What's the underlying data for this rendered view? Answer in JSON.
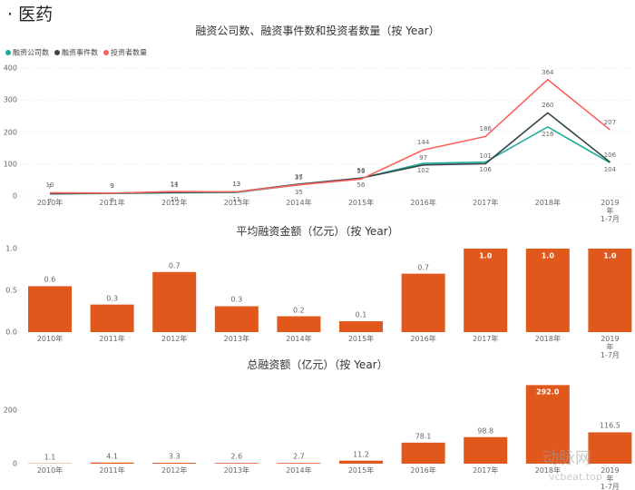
{
  "title": "· 医药",
  "watermark": {
    "name": "动脉网",
    "site": "vcbeat.top"
  },
  "chart_data": [
    {
      "type": "line",
      "title": "融资公司数、融资事件数和投资者数量（按 Year）",
      "categories": [
        "2010年",
        "2011年",
        "2012年",
        "2013年",
        "2014年",
        "2015年",
        "2016年",
        "2017年",
        "2018年",
        "2019年\n1-7月"
      ],
      "series": [
        {
          "name": "融资公司数",
          "color": "#1aab9b",
          "values": [
            7,
            8,
            10,
            11,
            35,
            56,
            102,
            106,
            216,
            104
          ]
        },
        {
          "name": "融资事件数",
          "color": "#374649",
          "values": [
            7,
            9,
            11,
            13,
            37,
            56,
            97,
            101,
            260,
            106
          ]
        },
        {
          "name": "投资者数量",
          "color": "#fd625e",
          "values": [
            10,
            9,
            14,
            13,
            35,
            53,
            144,
            186,
            364,
            207
          ]
        }
      ],
      "ylim": [
        0,
        400
      ],
      "yticks": [
        0,
        100,
        200,
        300,
        400
      ],
      "grid": true,
      "legend": "top-left"
    },
    {
      "type": "bar",
      "title": "平均融资金额（亿元）（按 Year）",
      "categories": [
        "2010年",
        "2011年",
        "2012年",
        "2013年",
        "2014年",
        "2015年",
        "2016年",
        "2017年",
        "2018年",
        "2019年\n1-7月"
      ],
      "values": [
        0.55,
        0.33,
        0.72,
        0.31,
        0.19,
        0.13,
        0.7,
        1.0,
        1.0,
        1.0
      ],
      "value_labels": [
        "0.6",
        "0.3",
        "0.7",
        "0.3",
        "0.2",
        "0.1",
        "0.7",
        "1.0",
        "1.0",
        "1.0"
      ],
      "color": "#e1581c",
      "ylim": [
        0,
        1
      ],
      "yticks": [
        {
          "value": 0,
          "label": "0.0"
        },
        0.5,
        {
          "value": 1,
          "label": "1.0"
        }
      ],
      "grid": false
    },
    {
      "type": "bar",
      "title": "总融资额（亿元）（按 Year）",
      "categories": [
        "2010年",
        "2011年",
        "2012年",
        "2013年",
        "2014年",
        "2015年",
        "2016年",
        "2017年",
        "2018年",
        "2019年\n1-7月"
      ],
      "values": [
        1.1,
        4.1,
        3.3,
        2.6,
        2.7,
        11.2,
        78.1,
        98.8,
        292.0,
        116.5
      ],
      "value_labels": [
        "1.1",
        "4.1",
        "3.3",
        "2.6",
        "2.7",
        "11.2",
        "78.1",
        "98.8",
        "292.0",
        "116.5"
      ],
      "color": "#e1581c",
      "ylim": [
        0,
        300
      ],
      "yticks": [
        0,
        200
      ],
      "grid": false
    }
  ]
}
